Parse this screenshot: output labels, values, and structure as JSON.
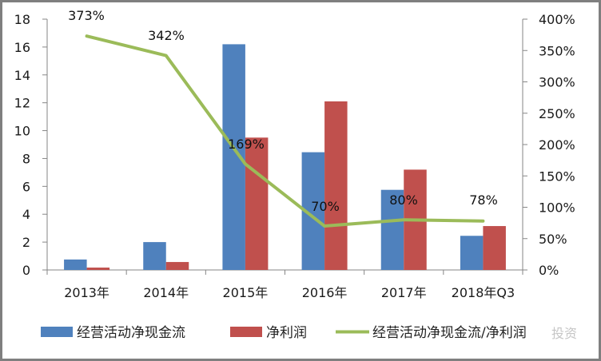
{
  "chart_data": {
    "type": "bar+line",
    "title": "",
    "categories": [
      "2013年",
      "2014年",
      "2015年",
      "2016年",
      "2017年",
      "2018年Q3"
    ],
    "series": [
      {
        "name": "经营活动净现金流",
        "type": "bar",
        "axis": "left",
        "color": "#4F81BD",
        "values": [
          0.75,
          2.0,
          16.2,
          8.45,
          5.75,
          2.45
        ]
      },
      {
        "name": "净利润",
        "type": "bar",
        "axis": "left",
        "color": "#C0504D",
        "values": [
          0.17,
          0.57,
          9.5,
          12.1,
          7.2,
          3.15
        ]
      },
      {
        "name": "经营活动净现金流/净利润",
        "type": "line",
        "axis": "right",
        "color": "#9BBB59",
        "values": [
          373,
          342,
          169,
          70,
          80,
          78
        ],
        "data_labels": [
          "373%",
          "342%",
          "169%",
          "70%",
          "80%",
          "78%"
        ]
      }
    ],
    "left_axis": {
      "ylim": [
        0,
        18
      ],
      "ticks": [
        "0",
        "2",
        "4",
        "6",
        "8",
        "10",
        "12",
        "14",
        "16",
        "18"
      ]
    },
    "right_axis": {
      "ylim": [
        0,
        400
      ],
      "ticks": [
        "0%",
        "50%",
        "100%",
        "150%",
        "200%",
        "250%",
        "300%",
        "350%",
        "400%"
      ]
    },
    "xlabel": "",
    "ylabel": "",
    "grid": false,
    "legend_position": "bottom"
  },
  "legend": {
    "items": [
      {
        "label": "经营活动净现金流",
        "color": "#4F81BD",
        "kind": "bar"
      },
      {
        "label": "净利润",
        "color": "#C0504D",
        "kind": "bar"
      },
      {
        "label": "经营活动净现金流/净利润",
        "color": "#9BBB59",
        "kind": "line"
      }
    ]
  },
  "watermark": {
    "text": "投资"
  }
}
